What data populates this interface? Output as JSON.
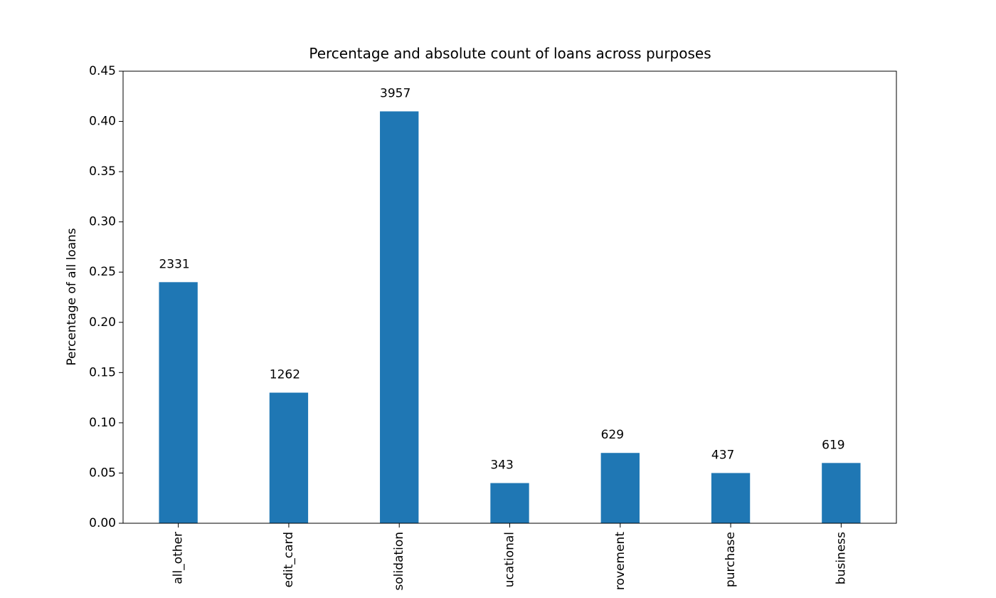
{
  "chart_data": {
    "type": "bar",
    "title": "Percentage and absolute count of loans across purposes",
    "y_label": "Percentage of all loans",
    "categories": [
      "all_other",
      "edit_card",
      "solidation",
      "ucational",
      "rovement",
      "purchase",
      "business"
    ],
    "values": [
      0.24,
      0.13,
      0.41,
      0.04,
      0.07,
      0.05,
      0.06
    ],
    "counts": [
      2331,
      1262,
      3957,
      343,
      629,
      437,
      619
    ],
    "color": "#1f77b4",
    "ylim": [
      0,
      0.45
    ],
    "yticks": [
      {
        "value": 0,
        "label": "0.00"
      },
      {
        "value": 0.05,
        "label": "0.05"
      },
      {
        "value": 0.1,
        "label": "0.10"
      },
      {
        "value": 0.15,
        "label": "0.15"
      },
      {
        "value": 0.2,
        "label": "0.20"
      },
      {
        "value": 0.25,
        "label": "0.25"
      },
      {
        "value": 0.3,
        "label": "0.30"
      },
      {
        "value": 0.35,
        "label": "0.35"
      },
      {
        "value": 0.4,
        "label": "0.40"
      },
      {
        "value": 0.45,
        "label": "0.45"
      }
    ],
    "grid": false
  }
}
